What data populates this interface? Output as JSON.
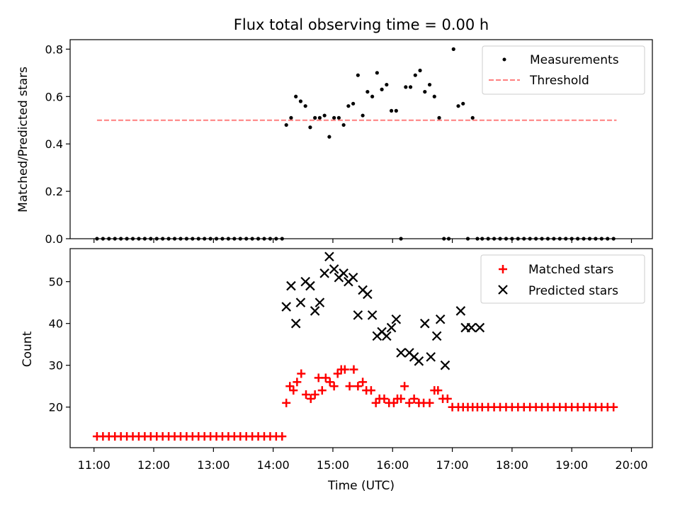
{
  "figure": {
    "title": "Flux total observing time = 0.00 h"
  },
  "chart_data": [
    {
      "type": "scatter",
      "panel": "top",
      "title": "Flux total observing time = 0.00 h",
      "xlabel": "",
      "ylabel": "Matched/Predicted stars",
      "x_unit": "time of day (UTC, hours)",
      "xlim": [
        10.6,
        20.35
      ],
      "ylim": [
        0,
        0.84
      ],
      "yticks": [
        0.0,
        0.2,
        0.4,
        0.6,
        0.8
      ],
      "ytick_labels": [
        "0.0",
        "0.2",
        "0.4",
        "0.6",
        "0.8"
      ],
      "xticks": [
        11,
        12,
        13,
        14,
        15,
        16,
        17,
        18,
        19,
        20
      ],
      "legend_position": "top-right",
      "grid": false,
      "series": [
        {
          "name": "Measurements",
          "marker": "dot",
          "color": "#000000",
          "x": [
            11.05,
            11.15,
            11.25,
            11.35,
            11.45,
            11.55,
            11.65,
            11.75,
            11.85,
            11.95,
            12.05,
            12.15,
            12.25,
            12.35,
            12.45,
            12.55,
            12.65,
            12.75,
            12.85,
            12.95,
            13.05,
            13.15,
            13.25,
            13.35,
            13.45,
            13.55,
            13.65,
            13.75,
            13.85,
            13.95,
            14.05,
            14.15,
            14.22,
            14.3,
            14.38,
            14.46,
            14.54,
            14.62,
            14.7,
            14.78,
            14.86,
            14.94,
            15.02,
            15.1,
            15.18,
            15.26,
            15.34,
            15.42,
            15.5,
            15.58,
            15.66,
            15.74,
            15.82,
            15.9,
            15.98,
            16.06,
            16.14,
            16.22,
            16.3,
            16.38,
            16.46,
            16.54,
            16.62,
            16.7,
            16.78,
            16.86,
            16.94,
            17.02,
            17.1,
            17.18,
            17.26,
            17.34,
            17.42,
            17.5,
            17.6,
            17.7,
            17.8,
            17.9,
            18.0,
            18.1,
            18.2,
            18.3,
            18.4,
            18.5,
            18.6,
            18.7,
            18.8,
            18.9,
            19.0,
            19.1,
            19.2,
            19.3,
            19.4,
            19.5,
            19.6,
            19.7
          ],
          "y": [
            0,
            0,
            0,
            0,
            0,
            0,
            0,
            0,
            0,
            0,
            0,
            0,
            0,
            0,
            0,
            0,
            0,
            0,
            0,
            0,
            0,
            0,
            0,
            0,
            0,
            0,
            0,
            0,
            0,
            0,
            0,
            0,
            0.48,
            0.51,
            0.6,
            0.58,
            0.56,
            0.47,
            0.51,
            0.51,
            0.52,
            0.43,
            0.51,
            0.51,
            0.48,
            0.56,
            0.57,
            0.69,
            0.52,
            0.62,
            0.6,
            0.7,
            0.63,
            0.65,
            0.54,
            0.54,
            0,
            0.64,
            0.64,
            0.69,
            0.71,
            0.62,
            0.65,
            0.6,
            0.51,
            0,
            0,
            0.8,
            0.56,
            0.57,
            0,
            0.51,
            0,
            0,
            0,
            0,
            0,
            0,
            0,
            0,
            0,
            0,
            0,
            0,
            0,
            0,
            0,
            0,
            0,
            0,
            0,
            0,
            0,
            0,
            0,
            0
          ]
        },
        {
          "name": "Threshold",
          "style": "dashed",
          "color": "#ff7f7f",
          "x": [
            11.05,
            19.75
          ],
          "y": [
            0.5,
            0.5
          ]
        }
      ]
    },
    {
      "type": "scatter",
      "panel": "bottom",
      "title": "",
      "xlabel": "Time (UTC)",
      "ylabel": "Count",
      "x_unit": "time of day (UTC, hours)",
      "xlim": [
        10.6,
        20.35
      ],
      "ylim": [
        10.3,
        57.9
      ],
      "yticks": [
        20,
        30,
        40,
        50
      ],
      "ytick_labels": [
        "20",
        "30",
        "40",
        "50"
      ],
      "xticks": [
        11,
        12,
        13,
        14,
        15,
        16,
        17,
        18,
        19,
        20
      ],
      "xtick_labels": [
        "11:00",
        "12:00",
        "13:00",
        "14:00",
        "15:00",
        "16:00",
        "17:00",
        "18:00",
        "19:00",
        "20:00"
      ],
      "legend_position": "top-right",
      "grid": false,
      "series": [
        {
          "name": "Matched stars",
          "marker": "plus",
          "color": "#ff0000",
          "x": [
            11.05,
            11.15,
            11.25,
            11.35,
            11.45,
            11.55,
            11.65,
            11.75,
            11.85,
            11.95,
            12.05,
            12.15,
            12.25,
            12.35,
            12.45,
            12.55,
            12.65,
            12.75,
            12.85,
            12.95,
            13.05,
            13.15,
            13.25,
            13.35,
            13.45,
            13.55,
            13.65,
            13.75,
            13.85,
            13.95,
            14.05,
            14.15,
            14.22,
            14.28,
            14.34,
            14.4,
            14.47,
            14.55,
            14.63,
            14.7,
            14.76,
            14.82,
            14.88,
            14.95,
            15.02,
            15.08,
            15.14,
            15.2,
            15.28,
            15.35,
            15.42,
            15.5,
            15.56,
            15.64,
            15.72,
            15.78,
            15.86,
            15.94,
            16.02,
            16.08,
            16.14,
            16.2,
            16.28,
            16.36,
            16.44,
            16.52,
            16.62,
            16.7,
            16.76,
            16.84,
            16.92,
            17.0,
            17.1,
            17.18,
            17.26,
            17.34,
            17.42,
            17.5,
            17.6,
            17.7,
            17.8,
            17.9,
            18.0,
            18.1,
            18.2,
            18.3,
            18.4,
            18.5,
            18.6,
            18.7,
            18.8,
            18.9,
            19.0,
            19.1,
            19.2,
            19.3,
            19.4,
            19.5,
            19.6,
            19.7
          ],
          "y": [
            13,
            13,
            13,
            13,
            13,
            13,
            13,
            13,
            13,
            13,
            13,
            13,
            13,
            13,
            13,
            13,
            13,
            13,
            13,
            13,
            13,
            13,
            13,
            13,
            13,
            13,
            13,
            13,
            13,
            13,
            13,
            13,
            21,
            25,
            24,
            26,
            28,
            23,
            22,
            23,
            27,
            24,
            27,
            26,
            25,
            28,
            29,
            29,
            25,
            29,
            25,
            26,
            24,
            24,
            21,
            22,
            22,
            21,
            21,
            22,
            22,
            25,
            21,
            22,
            21,
            21,
            21,
            24,
            24,
            22,
            22,
            20,
            20,
            20,
            20,
            20,
            20,
            20,
            20,
            20,
            20,
            20,
            20,
            20,
            20,
            20,
            20,
            20,
            20,
            20,
            20,
            20,
            20,
            20,
            20,
            20,
            20,
            20,
            20,
            20
          ]
        },
        {
          "name": "Predicted stars",
          "marker": "x",
          "color": "#000000",
          "x": [
            14.22,
            14.3,
            14.38,
            14.46,
            14.54,
            14.62,
            14.7,
            14.78,
            14.86,
            14.94,
            15.02,
            15.1,
            15.18,
            15.26,
            15.34,
            15.42,
            15.5,
            15.58,
            15.66,
            15.74,
            15.82,
            15.9,
            15.98,
            16.06,
            16.14,
            16.28,
            16.36,
            16.44,
            16.54,
            16.64,
            16.74,
            16.8,
            16.88,
            17.14,
            17.22,
            17.32,
            17.46
          ],
          "y": [
            44,
            49,
            40,
            45,
            50,
            49,
            43,
            45,
            52,
            56,
            53,
            51,
            52,
            50,
            51,
            42,
            48,
            47,
            42,
            37,
            38,
            37,
            39,
            41,
            33,
            33,
            32,
            31,
            40,
            32,
            37,
            41,
            30,
            43,
            39,
            39,
            39
          ]
        }
      ]
    }
  ]
}
